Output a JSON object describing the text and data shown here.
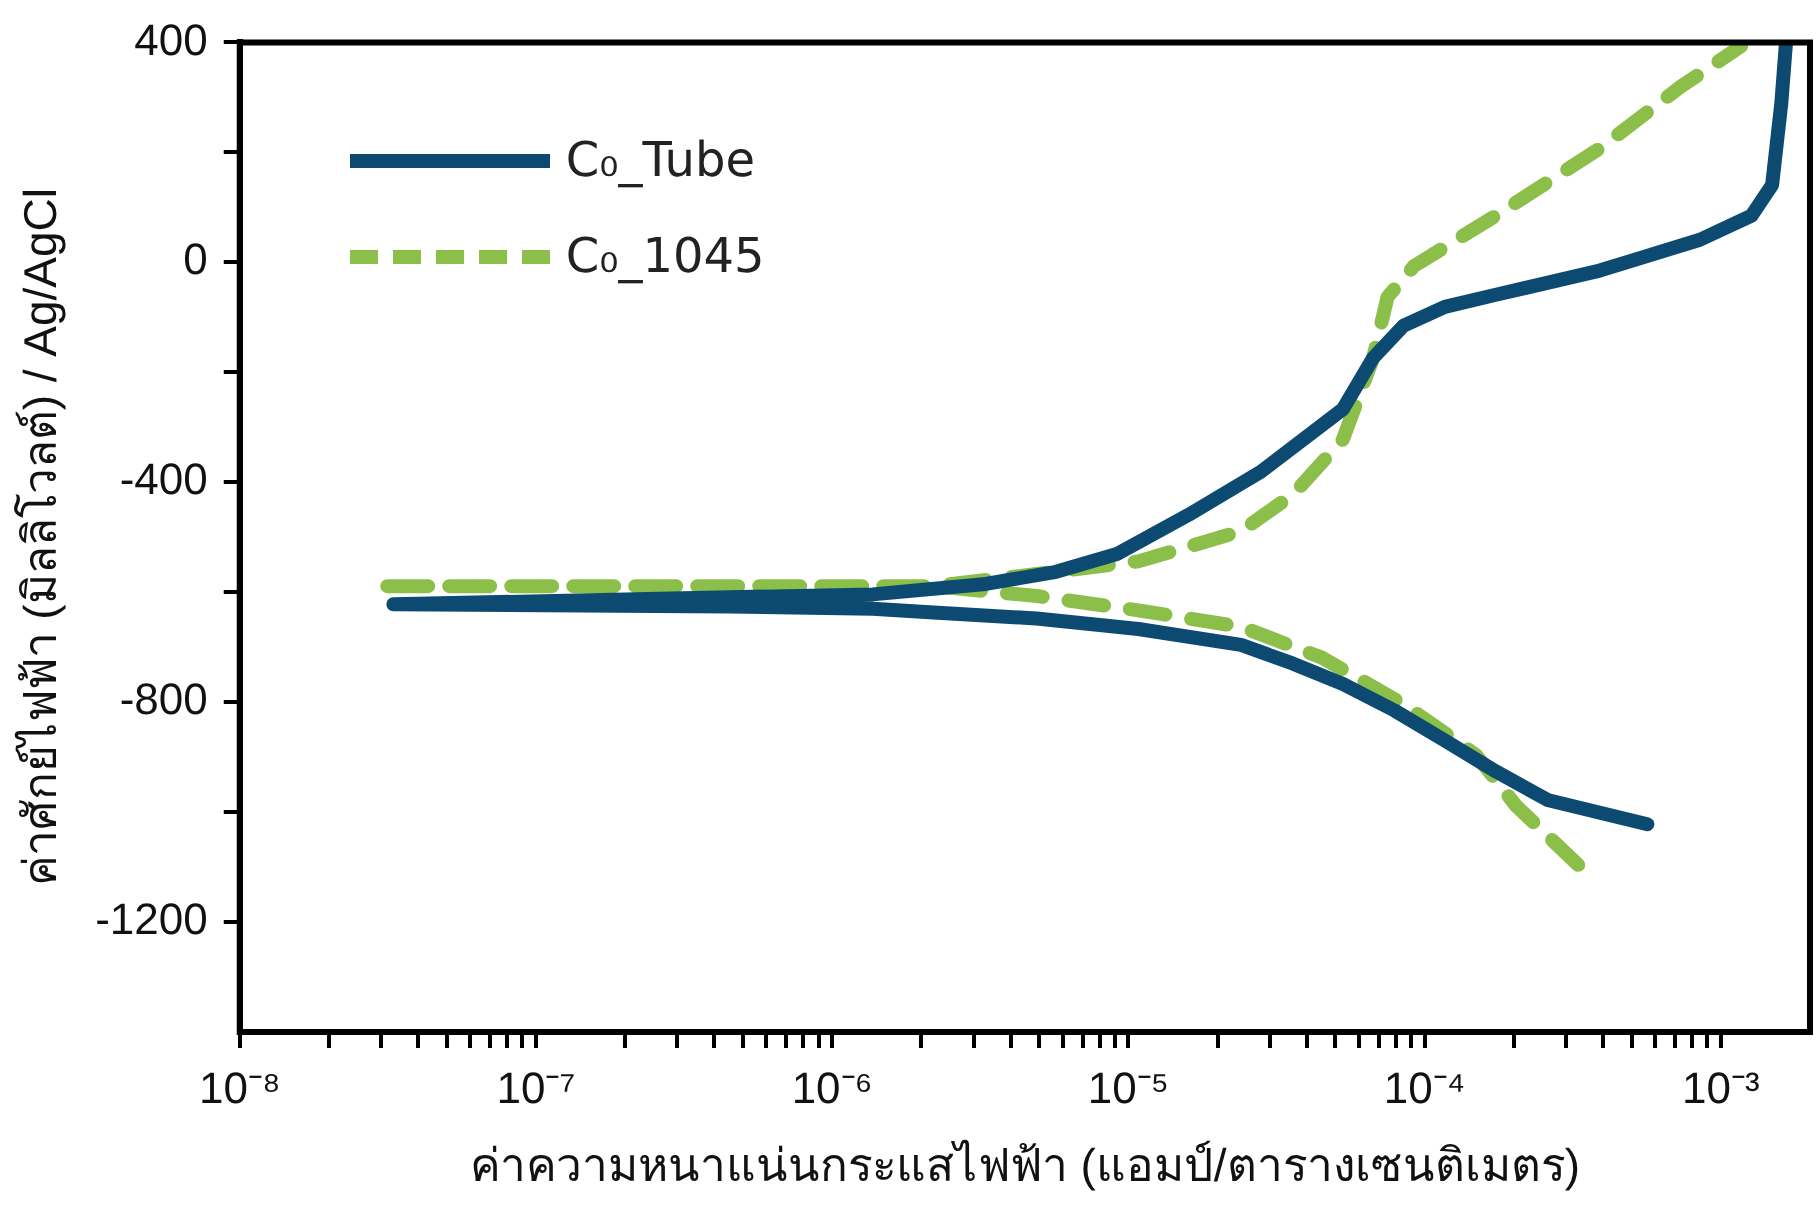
{
  "chart_data": {
    "type": "line",
    "xlabel": "ค่าความหนาแน่นกระแสไฟฟ้า (แอมป์/ตารางเซนติเมตร)",
    "ylabel": "ค่าศักย์ไฟฟ้า (มิลลิโวลต์) / Ag/AgCl",
    "log": "x",
    "grid": false,
    "legend": "top left",
    "marker": "none",
    "xlim": [
      1e-08,
      0.002
    ],
    "xticks": [
      {
        "value": 1e-08,
        "label": "10⁻⁸"
      },
      {
        "value": 2e-08,
        "label": null
      },
      {
        "value": 3e-08,
        "label": null
      },
      {
        "value": 4e-08,
        "label": null
      },
      {
        "value": 5e-08,
        "label": null
      },
      {
        "value": 6e-08,
        "label": null
      },
      {
        "value": 7e-08,
        "label": null
      },
      {
        "value": 8e-08,
        "label": null
      },
      {
        "value": 9e-08,
        "label": null
      },
      {
        "value": 1e-07,
        "label": "10⁻⁷"
      },
      {
        "value": 2e-07,
        "label": null
      },
      {
        "value": 3e-07,
        "label": null
      },
      {
        "value": 4e-07,
        "label": null
      },
      {
        "value": 5e-07,
        "label": null
      },
      {
        "value": 6e-07,
        "label": null
      },
      {
        "value": 7e-07,
        "label": null
      },
      {
        "value": 8e-07,
        "label": null
      },
      {
        "value": 9e-07,
        "label": null
      },
      {
        "value": 1e-06,
        "label": "10⁻⁶"
      },
      {
        "value": 2e-06,
        "label": null
      },
      {
        "value": 3e-06,
        "label": null
      },
      {
        "value": 4e-06,
        "label": null
      },
      {
        "value": 5e-06,
        "label": null
      },
      {
        "value": 6e-06,
        "label": null
      },
      {
        "value": 7e-06,
        "label": null
      },
      {
        "value": 8e-06,
        "label": null
      },
      {
        "value": 9e-06,
        "label": null
      },
      {
        "value": 1e-05,
        "label": "10⁻⁵"
      },
      {
        "value": 2e-05,
        "label": null
      },
      {
        "value": 3e-05,
        "label": null
      },
      {
        "value": 4e-05,
        "label": null
      },
      {
        "value": 5e-05,
        "label": null
      },
      {
        "value": 6e-05,
        "label": null
      },
      {
        "value": 7e-05,
        "label": null
      },
      {
        "value": 8e-05,
        "label": null
      },
      {
        "value": 9e-05,
        "label": null
      },
      {
        "value": 0.0001,
        "label": "10⁻⁴"
      },
      {
        "value": 0.0002,
        "label": null
      },
      {
        "value": 0.0003,
        "label": null
      },
      {
        "value": 0.0004,
        "label": null
      },
      {
        "value": 0.0005,
        "label": null
      },
      {
        "value": 0.0006,
        "label": null
      },
      {
        "value": 0.0007,
        "label": null
      },
      {
        "value": 0.0008,
        "label": null
      },
      {
        "value": 0.0009,
        "label": null
      },
      {
        "value": 0.001,
        "label": "10⁻³"
      }
    ],
    "ylim": [
      -1400,
      400
    ],
    "yticks": [
      {
        "value": -1200,
        "label": "-1200"
      },
      {
        "value": -1000,
        "label": null
      },
      {
        "value": -800,
        "label": "-800"
      },
      {
        "value": -600,
        "label": null
      },
      {
        "value": -400,
        "label": "-400"
      },
      {
        "value": -200,
        "label": null
      },
      {
        "value": 0,
        "label": "0"
      },
      {
        "value": 200,
        "label": null
      },
      {
        "value": 400,
        "label": "400"
      }
    ],
    "series": [
      {
        "name": "C₀_Tube",
        "color": "#0d4a72",
        "line_style": "solid",
        "x": [
          0.000565,
          0.00026,
          0.000174,
          0.000117,
          7.9e-05,
          5.3e-05,
          3.6e-05,
          2.4e-05,
          1.08e-05,
          4.9e-06,
          2.2e-06,
          1.37e-06,
          4.5e-07,
          3.3e-08,
          1.37e-06,
          3.3e-06,
          5.7e-06,
          9.2e-06,
          1.6e-05,
          2.8e-05,
          5.3e-05,
          6.7e-05,
          8.5e-05,
          0.000117,
          0.000174,
          0.00039,
          0.00085,
          0.00127,
          0.00149,
          0.0016,
          0.00166
        ],
        "values": [
          -1022,
          -978,
          -926,
          -870,
          -815,
          -767,
          -730,
          -696,
          -667,
          -648,
          -637,
          -630,
          -626,
          -622,
          -604,
          -585,
          -563,
          -530,
          -459,
          -381,
          -267,
          -174,
          -115,
          -81,
          -59,
          -15,
          41,
          85,
          141,
          289,
          400
        ]
      },
      {
        "name": "C₀_1045",
        "color": "#8cbf4a",
        "line_style": "dashed",
        "x": [
          0.00033,
          0.000204,
          0.000149,
          8.5e-05,
          4.5e-05,
          2.4e-05,
          1.08e-05,
          4.9e-06,
          2.2e-06,
          2.9e-08,
          2.2e-06,
          4.9e-06,
          1.08e-05,
          2.4e-05,
          3.6e-05,
          5.3e-05,
          6.7e-05,
          7.5e-05,
          9.2e-05,
          0.000174,
          0.00039,
          0.00073,
          0.00117
        ],
        "values": [
          -1096,
          -989,
          -896,
          -804,
          -719,
          -663,
          -633,
          -607,
          -589,
          -589,
          -589,
          -567,
          -544,
          -489,
          -422,
          -322,
          -174,
          -63,
          -7,
          85,
          207,
          319,
          393
        ]
      }
    ]
  }
}
